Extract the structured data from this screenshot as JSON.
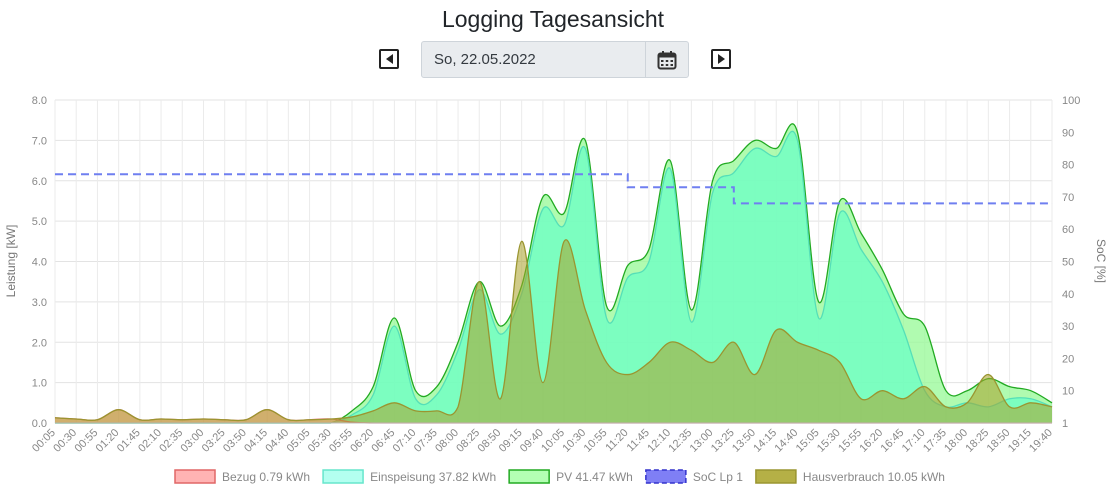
{
  "header": {
    "title": "Logging Tagesansicht"
  },
  "date_nav": {
    "date": "So, 22.05.2022",
    "prev_icon": "caret-left-square-icon",
    "next_icon": "caret-right-square-icon",
    "calendar_icon": "calendar-icon"
  },
  "chart_data": {
    "type": "area",
    "xlabel": "",
    "ylabel": "Leistung [kW]",
    "y2label": "SoC [%]",
    "ylim": [
      0,
      8
    ],
    "y2lim": [
      0,
      100
    ],
    "yticks": [
      "0.0",
      "1.0",
      "2.0",
      "3.0",
      "4.0",
      "5.0",
      "6.0",
      "7.0",
      "8.0"
    ],
    "y2ticks": [
      "1",
      "10",
      "20",
      "30",
      "40",
      "50",
      "60",
      "70",
      "80",
      "90",
      "100"
    ],
    "grid": true,
    "legend_position": "bottom",
    "categories": [
      "00:05",
      "00:30",
      "00:55",
      "01:20",
      "01:45",
      "02:10",
      "02:35",
      "03:00",
      "03:25",
      "03:50",
      "04:15",
      "04:40",
      "05:05",
      "05:30",
      "05:55",
      "06:20",
      "06:45",
      "07:10",
      "07:35",
      "08:00",
      "08:25",
      "08:50",
      "09:15",
      "09:40",
      "10:05",
      "10:30",
      "10:55",
      "11:20",
      "11:45",
      "12:10",
      "12:35",
      "13:00",
      "13:25",
      "13:50",
      "14:15",
      "14:40",
      "15:05",
      "15:30",
      "15:55",
      "16:20",
      "16:45",
      "17:10",
      "17:35",
      "18:00",
      "18:25",
      "18:50",
      "19:15",
      "19:40"
    ],
    "legend": [
      {
        "label": "Bezug 0.79 kWh",
        "fill": "#ffb3b3",
        "stroke": "#e06666",
        "dash": false
      },
      {
        "label": "Einspeisung 37.82 kWh",
        "fill": "#b3fff0",
        "stroke": "#66e6cc",
        "dash": false
      },
      {
        "label": "PV 41.47 kWh",
        "fill": "#b3ffb3",
        "stroke": "#22aa22",
        "dash": false
      },
      {
        "label": "SoC Lp 1",
        "fill": "#7f7ff5",
        "stroke": "#3333cc",
        "dash": true
      },
      {
        "label": "Hausverbrauch 10.05 kWh",
        "fill": "#b5b046",
        "stroke": "#9a9530",
        "dash": false
      }
    ],
    "series": [
      {
        "name": "PV",
        "axis": "left",
        "values": [
          0,
          0,
          0,
          0,
          0,
          0,
          0,
          0,
          0,
          0,
          0,
          0,
          0,
          0,
          0.3,
          0.9,
          2.6,
          0.8,
          0.9,
          2.0,
          3.5,
          2.4,
          3.4,
          5.6,
          5.2,
          7.0,
          2.9,
          3.9,
          4.3,
          6.5,
          2.8,
          6.0,
          6.5,
          7.0,
          6.8,
          7.2,
          3.0,
          5.5,
          4.7,
          3.8,
          2.7,
          2.4,
          0.8,
          0.8,
          1.1,
          0.9,
          0.8,
          0.5
        ],
        "color": "#22aa22",
        "fill": "rgba(150,250,150,0.75)"
      },
      {
        "name": "Einspeisung",
        "axis": "left",
        "values": [
          0,
          0,
          0,
          0,
          0,
          0,
          0,
          0,
          0,
          0,
          0,
          0,
          0,
          0,
          0.2,
          0.7,
          2.4,
          0.6,
          0.7,
          1.8,
          3.3,
          2.2,
          3.2,
          5.3,
          4.9,
          6.8,
          2.6,
          3.6,
          4.0,
          6.3,
          2.5,
          5.7,
          6.2,
          6.8,
          6.6,
          7.0,
          2.6,
          5.2,
          4.3,
          3.5,
          2.3,
          0.8,
          0.4,
          0.5,
          0.4,
          0.6,
          0.6,
          0.4
        ],
        "color": "#55dfb8",
        "fill": "rgba(102,255,200,0.7)"
      },
      {
        "name": "Bezug",
        "axis": "left",
        "values": [
          0.13,
          0.1,
          0.08,
          0.33,
          0.08,
          0.1,
          0.08,
          0.1,
          0.08,
          0.08,
          0.33,
          0.08,
          0.08,
          0.1,
          0.02,
          0,
          0,
          0,
          0,
          0,
          0,
          0,
          0,
          0,
          0,
          0,
          0,
          0,
          0,
          0,
          0,
          0,
          0,
          0,
          0,
          0,
          0,
          0,
          0,
          0,
          0,
          0,
          0,
          0,
          0,
          0,
          0,
          0
        ],
        "color": "#e06666",
        "fill": "rgba(255,150,150,0.6)"
      },
      {
        "name": "Hausverbrauch",
        "axis": "left",
        "values": [
          0.13,
          0.1,
          0.08,
          0.33,
          0.08,
          0.1,
          0.08,
          0.1,
          0.08,
          0.08,
          0.33,
          0.08,
          0.08,
          0.1,
          0.15,
          0.3,
          0.5,
          0.3,
          0.3,
          0.4,
          3.5,
          0.6,
          4.5,
          1.0,
          4.5,
          2.8,
          1.5,
          1.2,
          1.5,
          2.0,
          1.8,
          1.5,
          2.0,
          1.2,
          2.3,
          2.0,
          1.8,
          1.5,
          0.6,
          0.8,
          0.6,
          0.9,
          0.4,
          0.5,
          1.2,
          0.4,
          0.5,
          0.4
        ],
        "color": "#9a9530",
        "fill": "rgba(170,160,40,0.55)"
      },
      {
        "name": "SoC Lp 1",
        "axis": "right",
        "values": [
          77,
          77,
          77,
          77,
          77,
          77,
          77,
          77,
          77,
          77,
          77,
          77,
          77,
          77,
          77,
          77,
          77,
          77,
          77,
          77,
          77,
          77,
          77,
          77,
          77,
          77,
          77,
          73,
          73,
          73,
          73,
          73,
          68,
          68,
          68,
          68,
          68,
          68,
          68,
          68,
          68,
          68,
          68,
          68,
          68,
          68,
          68,
          68
        ],
        "color": "#6f7ff0",
        "dash": true
      }
    ]
  }
}
